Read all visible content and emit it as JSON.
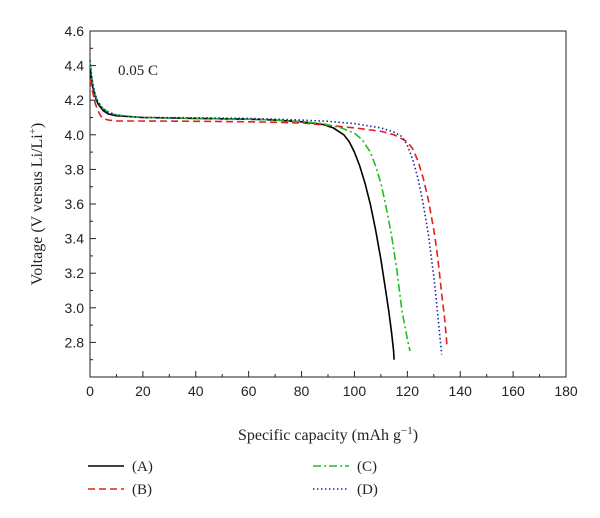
{
  "chart_data": {
    "type": "line",
    "title": "",
    "xlabel": "Specific capacity (mAh g",
    "xlabel_sup": "−1",
    "xlabel_end": ")",
    "ylabel": "Voltage (V versus Li/Li",
    "ylabel_sup": "+",
    "ylabel_end": ")",
    "xlim": [
      0,
      180
    ],
    "ylim": [
      2.6,
      4.6
    ],
    "xticks": [
      0,
      20,
      40,
      60,
      80,
      100,
      120,
      140,
      160,
      180
    ],
    "yticks": [
      2.8,
      3.0,
      3.2,
      3.4,
      3.6,
      3.8,
      4.0,
      4.2,
      4.4,
      4.6
    ],
    "grid": false,
    "annotation": "0.05 C",
    "legend_position": "bottom",
    "series": [
      {
        "name": "(A)",
        "color": "#000000",
        "dash": "solid",
        "points": [
          [
            0,
            4.4
          ],
          [
            0.5,
            4.33
          ],
          [
            1,
            4.28
          ],
          [
            2,
            4.22
          ],
          [
            3,
            4.18
          ],
          [
            5,
            4.14
          ],
          [
            7,
            4.12
          ],
          [
            10,
            4.11
          ],
          [
            15,
            4.105
          ],
          [
            20,
            4.1
          ],
          [
            40,
            4.095
          ],
          [
            60,
            4.09
          ],
          [
            70,
            4.085
          ],
          [
            80,
            4.075
          ],
          [
            88,
            4.06
          ],
          [
            92,
            4.04
          ],
          [
            96,
            4.0
          ],
          [
            98,
            3.96
          ],
          [
            100,
            3.9
          ],
          [
            102,
            3.82
          ],
          [
            104,
            3.72
          ],
          [
            106,
            3.6
          ],
          [
            108,
            3.45
          ],
          [
            110,
            3.28
          ],
          [
            112,
            3.08
          ],
          [
            113,
            2.98
          ],
          [
            114,
            2.86
          ],
          [
            114.8,
            2.75
          ],
          [
            115,
            2.7
          ]
        ]
      },
      {
        "name": "(B)",
        "color": "#e02020",
        "dash": "dashed",
        "points": [
          [
            0,
            4.32
          ],
          [
            1,
            4.25
          ],
          [
            2,
            4.18
          ],
          [
            3,
            4.14
          ],
          [
            4,
            4.11
          ],
          [
            5,
            4.095
          ],
          [
            7,
            4.085
          ],
          [
            10,
            4.08
          ],
          [
            20,
            4.08
          ],
          [
            40,
            4.078
          ],
          [
            60,
            4.075
          ],
          [
            70,
            4.072
          ],
          [
            80,
            4.068
          ],
          [
            90,
            4.055
          ],
          [
            100,
            4.04
          ],
          [
            110,
            4.02
          ],
          [
            115,
            4.0
          ],
          [
            120,
            3.96
          ],
          [
            122,
            3.92
          ],
          [
            124,
            3.85
          ],
          [
            126,
            3.75
          ],
          [
            128,
            3.62
          ],
          [
            130,
            3.45
          ],
          [
            131,
            3.35
          ],
          [
            132,
            3.22
          ],
          [
            133,
            3.08
          ],
          [
            134,
            2.95
          ],
          [
            134.8,
            2.82
          ],
          [
            135,
            2.77
          ]
        ]
      },
      {
        "name": "(C)",
        "color": "#22bb22",
        "dash": "dashdot",
        "points": [
          [
            0,
            4.42
          ],
          [
            0.5,
            4.35
          ],
          [
            1,
            4.3
          ],
          [
            2,
            4.23
          ],
          [
            3,
            4.19
          ],
          [
            5,
            4.15
          ],
          [
            7,
            4.13
          ],
          [
            10,
            4.115
          ],
          [
            15,
            4.105
          ],
          [
            20,
            4.1
          ],
          [
            40,
            4.095
          ],
          [
            60,
            4.09
          ],
          [
            70,
            4.085
          ],
          [
            80,
            4.075
          ],
          [
            88,
            4.065
          ],
          [
            95,
            4.04
          ],
          [
            100,
            4.01
          ],
          [
            103,
            3.97
          ],
          [
            106,
            3.9
          ],
          [
            108,
            3.82
          ],
          [
            110,
            3.72
          ],
          [
            112,
            3.58
          ],
          [
            114,
            3.42
          ],
          [
            116,
            3.22
          ],
          [
            117,
            3.1
          ],
          [
            118,
            2.98
          ],
          [
            119,
            2.9
          ],
          [
            120,
            2.82
          ],
          [
            121,
            2.75
          ]
        ]
      },
      {
        "name": "(D)",
        "color": "#2222aa",
        "dash": "dotted",
        "points": [
          [
            0,
            4.43
          ],
          [
            0.5,
            4.36
          ],
          [
            1,
            4.3
          ],
          [
            2,
            4.23
          ],
          [
            3,
            4.19
          ],
          [
            5,
            4.15
          ],
          [
            7,
            4.13
          ],
          [
            10,
            4.115
          ],
          [
            15,
            4.105
          ],
          [
            20,
            4.1
          ],
          [
            40,
            4.098
          ],
          [
            60,
            4.095
          ],
          [
            70,
            4.09
          ],
          [
            80,
            4.085
          ],
          [
            90,
            4.078
          ],
          [
            100,
            4.065
          ],
          [
            110,
            4.04
          ],
          [
            115,
            4.015
          ],
          [
            118,
            3.99
          ],
          [
            120,
            3.94
          ],
          [
            122,
            3.86
          ],
          [
            124,
            3.75
          ],
          [
            126,
            3.6
          ],
          [
            128,
            3.42
          ],
          [
            129,
            3.3
          ],
          [
            130,
            3.18
          ],
          [
            131,
            3.04
          ],
          [
            132,
            2.88
          ],
          [
            133,
            2.73
          ]
        ]
      }
    ]
  }
}
